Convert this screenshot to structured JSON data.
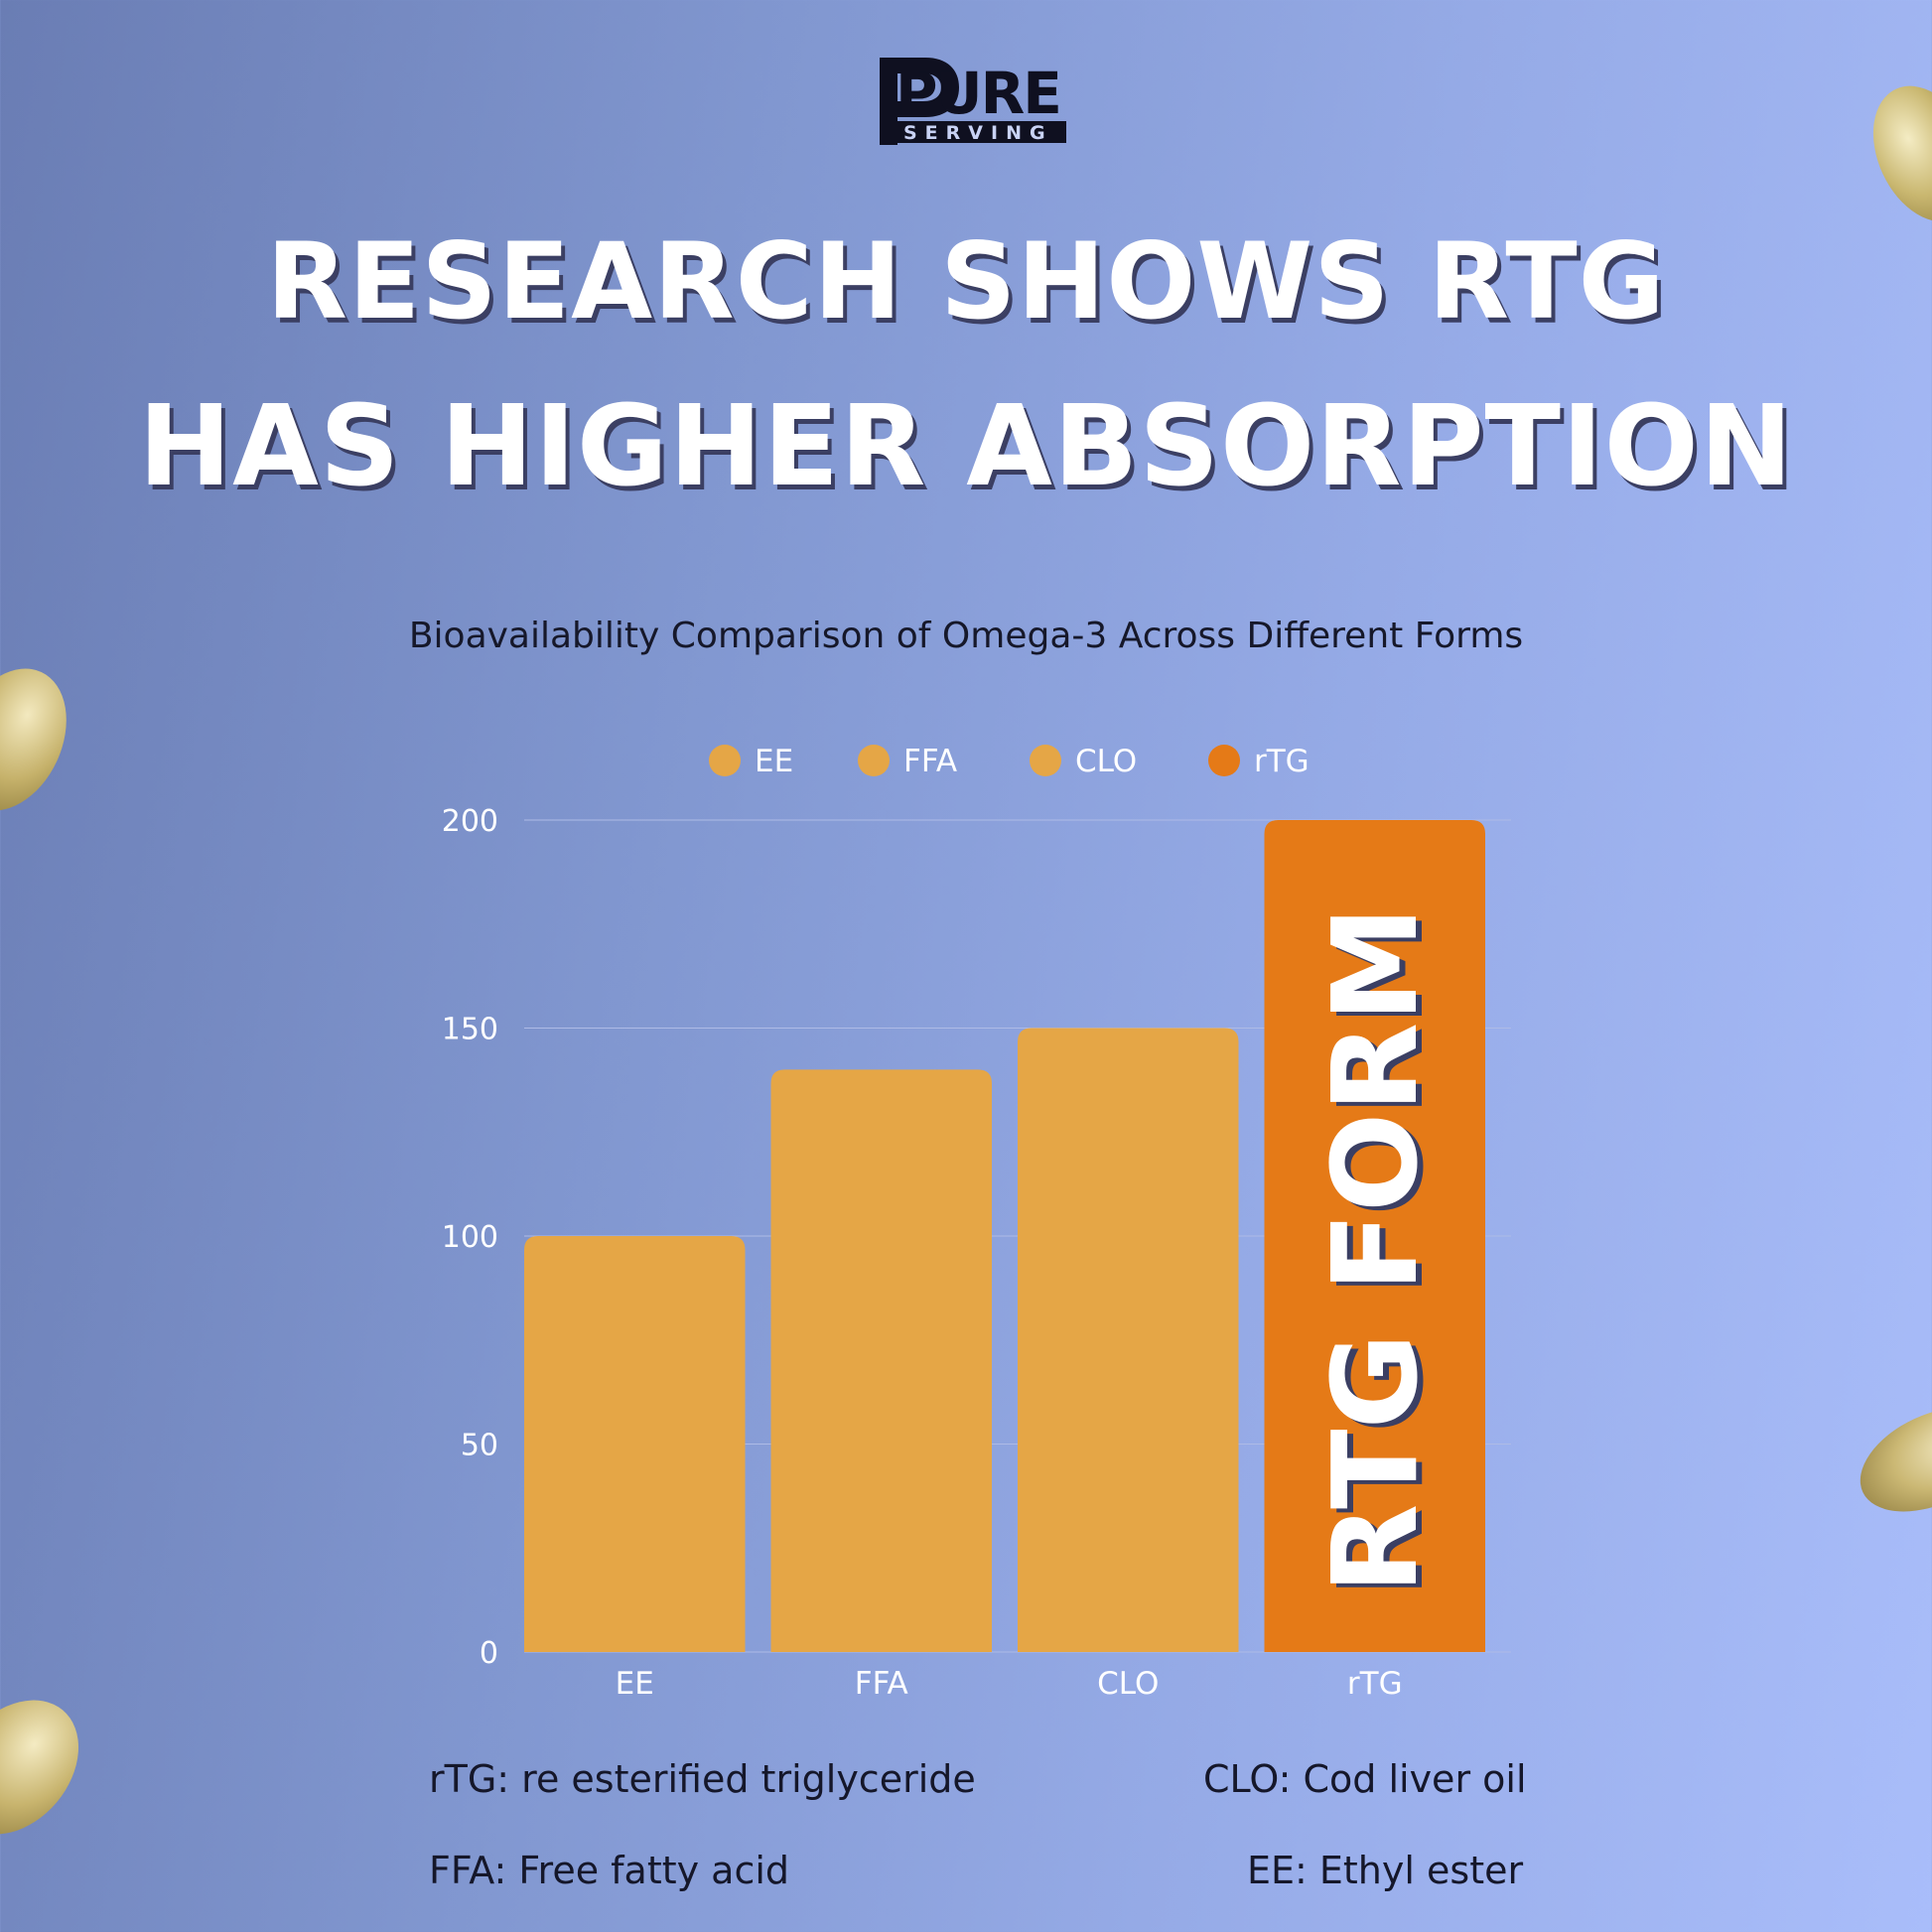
{
  "brand": {
    "logo_top": "PURE",
    "logo_bottom": "SERVING"
  },
  "headline": {
    "line1": "RESEARCH SHOWS RTG",
    "line2": "HAS HIGHER ABSORPTION"
  },
  "colors": {
    "standard_bar": "#e5a646",
    "highlight_bar": "#e57a17",
    "gridline": "#aebbe6",
    "axis_text": "#ffffff"
  },
  "chart_data": {
    "type": "bar",
    "title": "Bioavailability Comparison of Omega-3 Across Different Forms",
    "categories": [
      "EE",
      "FFA",
      "CLO",
      "rTG"
    ],
    "values": [
      100,
      140,
      150,
      200
    ],
    "xlabel": "",
    "ylabel": "",
    "ylim": [
      0,
      200
    ],
    "yticks": [
      "0",
      "50",
      "100",
      "150",
      "200"
    ],
    "grid": true,
    "legend": [
      {
        "label": "EE",
        "color": "#e5a646"
      },
      {
        "label": "FFA",
        "color": "#e5a646"
      },
      {
        "label": "CLO",
        "color": "#e5a646"
      },
      {
        "label": "rTG",
        "color": "#e57a17"
      }
    ],
    "legend_position": "top-center",
    "annotation": "RTG FORM",
    "highlight_index": 3
  },
  "footnotes": {
    "rtg": "rTG: re esterified triglyceride",
    "clo": "CLO: Cod liver oil",
    "ffa": "FFA: Free fatty acid",
    "ee": "EE: Ethyl ester"
  }
}
